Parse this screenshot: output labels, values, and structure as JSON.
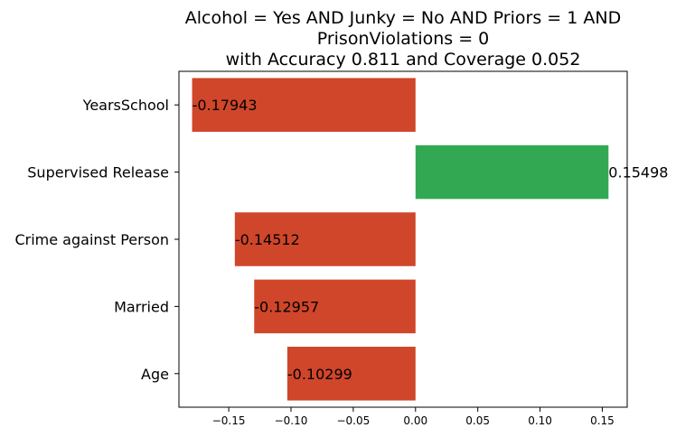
{
  "chart_data": {
    "type": "bar",
    "orientation": "horizontal",
    "title_lines": [
      "Alcohol = Yes AND Junky = No AND Priors = 1 AND",
      "PrisonViolations = 0",
      "with Accuracy 0.811 and Coverage 0.052"
    ],
    "categories": [
      "YearsSchool",
      "Supervised Release",
      "Crime against Person",
      "Married",
      "Age"
    ],
    "values": [
      -0.17943,
      0.15498,
      -0.14512,
      -0.12957,
      -0.10299
    ],
    "value_labels": [
      "-0.17943",
      "0.15498",
      "-0.14512",
      "-0.12957",
      "-0.10299"
    ],
    "xticks": [
      -0.15,
      -0.1,
      -0.05,
      0.0,
      0.05,
      0.1,
      0.15
    ],
    "xtick_labels": [
      "−0.15",
      "−0.10",
      "−0.05",
      "0.00",
      "0.05",
      "0.10",
      "0.15"
    ],
    "xlim": [
      -0.19,
      0.17
    ],
    "xlabel": "",
    "ylabel": "",
    "grid": false,
    "colors": {
      "negative": "#d0462a",
      "positive": "#33a853"
    }
  }
}
